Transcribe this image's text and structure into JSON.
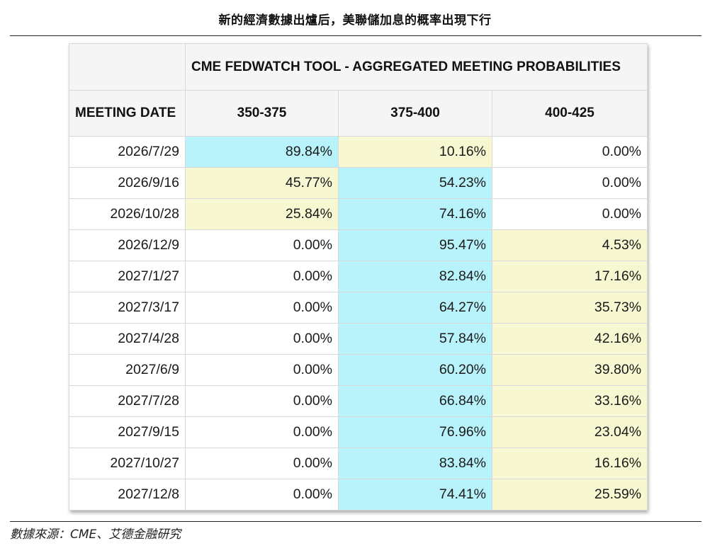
{
  "page_title": "新的經濟數據出爐后，美聯儲加息的概率出現下行",
  "table": {
    "tool_title": "CME FEDWATCH TOOL - AGGREGATED MEETING PROBABILITIES",
    "date_header": "MEETING DATE",
    "columns": [
      "350-375",
      "375-400",
      "400-425"
    ],
    "rows": [
      {
        "date": "2026/7/29",
        "values": [
          "89.84%",
          "10.16%",
          "0.00%"
        ],
        "highlight": [
          "blue",
          "yellow",
          "none"
        ]
      },
      {
        "date": "2026/9/16",
        "values": [
          "45.77%",
          "54.23%",
          "0.00%"
        ],
        "highlight": [
          "yellow",
          "blue",
          "none"
        ]
      },
      {
        "date": "2026/10/28",
        "values": [
          "25.84%",
          "74.16%",
          "0.00%"
        ],
        "highlight": [
          "yellow",
          "blue",
          "none"
        ]
      },
      {
        "date": "2026/12/9",
        "values": [
          "0.00%",
          "95.47%",
          "4.53%"
        ],
        "highlight": [
          "none",
          "blue",
          "yellow"
        ]
      },
      {
        "date": "2027/1/27",
        "values": [
          "0.00%",
          "82.84%",
          "17.16%"
        ],
        "highlight": [
          "none",
          "blue",
          "yellow"
        ]
      },
      {
        "date": "2027/3/17",
        "values": [
          "0.00%",
          "64.27%",
          "35.73%"
        ],
        "highlight": [
          "none",
          "blue",
          "yellow"
        ]
      },
      {
        "date": "2027/4/28",
        "values": [
          "0.00%",
          "57.84%",
          "42.16%"
        ],
        "highlight": [
          "none",
          "blue",
          "yellow"
        ]
      },
      {
        "date": "2027/6/9",
        "values": [
          "0.00%",
          "60.20%",
          "39.80%"
        ],
        "highlight": [
          "none",
          "blue",
          "yellow"
        ]
      },
      {
        "date": "2027/7/28",
        "values": [
          "0.00%",
          "66.84%",
          "33.16%"
        ],
        "highlight": [
          "none",
          "blue",
          "yellow"
        ]
      },
      {
        "date": "2027/9/15",
        "values": [
          "0.00%",
          "76.96%",
          "23.04%"
        ],
        "highlight": [
          "none",
          "blue",
          "yellow"
        ]
      },
      {
        "date": "2027/10/27",
        "values": [
          "0.00%",
          "83.84%",
          "16.16%"
        ],
        "highlight": [
          "none",
          "blue",
          "yellow"
        ]
      },
      {
        "date": "2027/12/8",
        "values": [
          "0.00%",
          "74.41%",
          "25.59%"
        ],
        "highlight": [
          "none",
          "blue",
          "yellow"
        ]
      }
    ]
  },
  "colors": {
    "highlight_blue": "#b8f3fb",
    "highlight_yellow": "#f7f7d2",
    "header_bg": "#f5f5f5"
  },
  "source": "數據來源：CME、艾德金融研究"
}
